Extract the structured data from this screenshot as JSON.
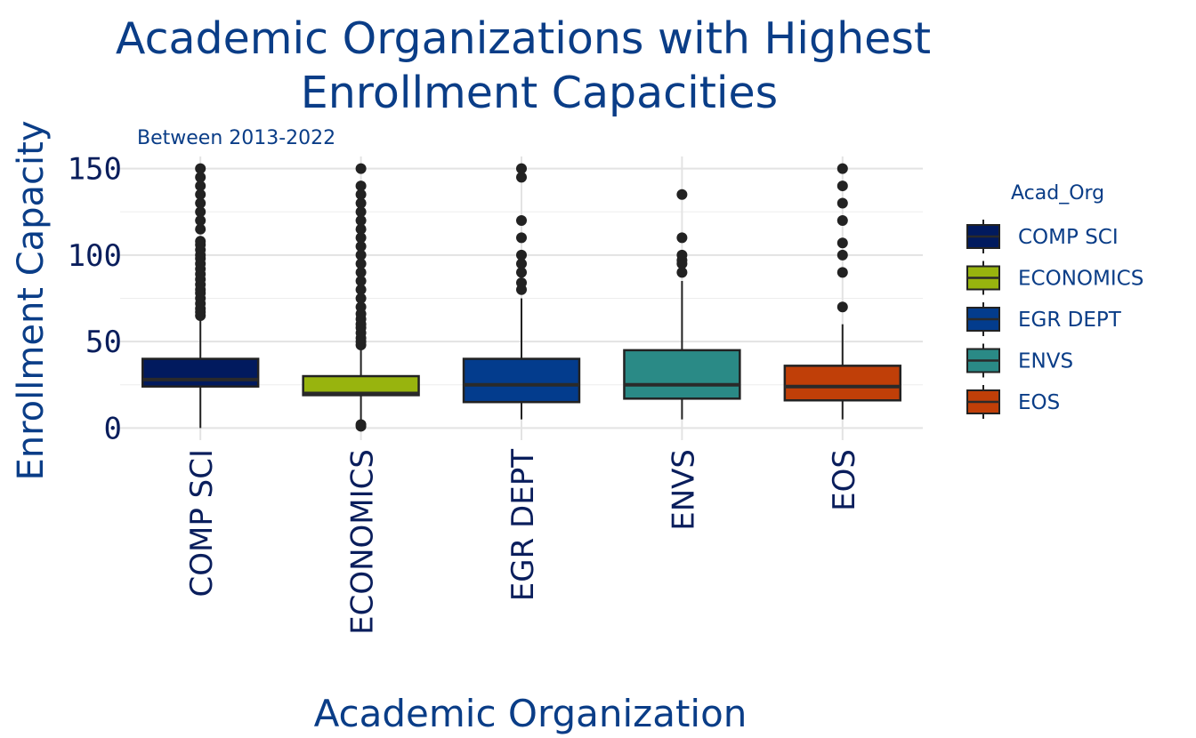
{
  "chart_data": {
    "type": "box",
    "title_lines": [
      "Academic Organizations with Highest",
      "Enrollment Capacities"
    ],
    "subtitle": "Between 2013-2022",
    "xlabel": "Academic Organization",
    "ylabel": "Enrollment Capacity",
    "ylim": [
      -7,
      157
    ],
    "yticks": [
      0,
      50,
      100,
      150
    ],
    "grid": true,
    "legend": {
      "title": "Acad_Org",
      "position": "right"
    },
    "categories": [
      "COMP SCI",
      "ECONOMICS",
      "EGR DEPT",
      "ENVS",
      "EOS"
    ],
    "series": [
      {
        "name": "COMP SCI",
        "color": "#011a5e",
        "whisker_low": 0,
        "q1": 24,
        "median": 28,
        "q3": 40,
        "whisker_high": 63,
        "outliers": [
          65,
          67,
          69,
          72,
          75,
          78,
          80,
          83,
          86,
          89,
          92,
          95,
          98,
          100,
          103,
          106,
          108,
          115,
          120,
          125,
          130,
          135,
          140,
          145,
          150
        ]
      },
      {
        "name": "ECONOMICS",
        "color": "#98b40e",
        "whisker_low": 1,
        "q1": 19,
        "median": 20,
        "q3": 30,
        "whisker_high": 46,
        "outliers": [
          1,
          2,
          48,
          50,
          52,
          55,
          58,
          60,
          63,
          66,
          70,
          75,
          80,
          85,
          90,
          95,
          100,
          105,
          110,
          115,
          120,
          125,
          130,
          135,
          140,
          150
        ]
      },
      {
        "name": "EGR DEPT",
        "color": "#033c8d",
        "whisker_low": 5,
        "q1": 15,
        "median": 25,
        "q3": 40,
        "whisker_high": 75,
        "outliers": [
          80,
          84,
          90,
          95,
          100,
          110,
          120,
          145,
          150
        ]
      },
      {
        "name": "ENVS",
        "color": "#2a8a86",
        "whisker_low": 5,
        "q1": 17,
        "median": 25,
        "q3": 45,
        "whisker_high": 85,
        "outliers": [
          90,
          95,
          97,
          100,
          110,
          135
        ]
      },
      {
        "name": "EOS",
        "color": "#c03f08",
        "whisker_low": 5,
        "q1": 16,
        "median": 24,
        "q3": 36,
        "whisker_high": 60,
        "outliers": [
          70,
          90,
          100,
          107,
          120,
          130,
          140,
          150
        ]
      }
    ]
  }
}
